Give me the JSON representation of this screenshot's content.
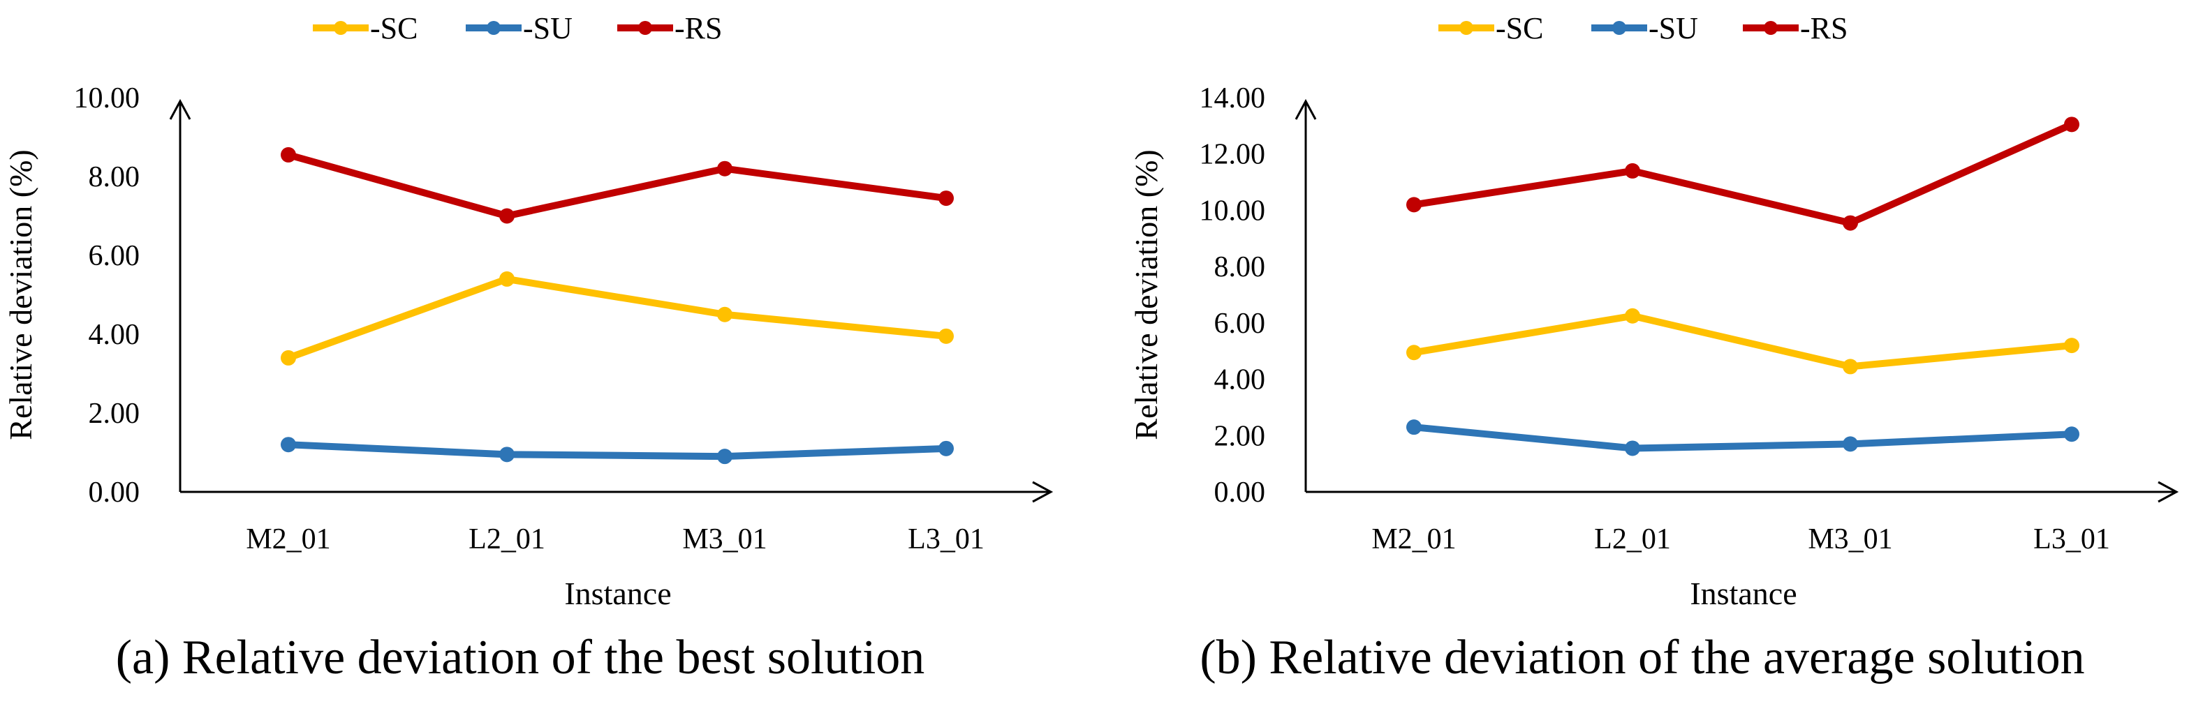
{
  "colors": {
    "SC": "#FFC000",
    "SU": "#2E75B6",
    "RS": "#C00000",
    "axis": "#000000"
  },
  "chart_data": [
    {
      "type": "line",
      "caption": "(a) Relative deviation of the best solution",
      "xlabel": "Instance",
      "ylabel": "Relative deviation (%)",
      "categories": [
        "M2_01",
        "L2_01",
        "M3_01",
        "L3_01"
      ],
      "ylim": [
        0,
        10
      ],
      "yticks": [
        "0.00",
        "2.00",
        "4.00",
        "6.00",
        "8.00",
        "10.00"
      ],
      "legend_position": "top-left",
      "series": [
        {
          "name": "-SC",
          "key": "SC",
          "values": [
            3.4,
            5.4,
            4.5,
            3.95
          ]
        },
        {
          "name": "-SU",
          "key": "SU",
          "values": [
            1.2,
            0.95,
            0.9,
            1.1
          ]
        },
        {
          "name": "-RS",
          "key": "RS",
          "values": [
            8.55,
            7.0,
            8.2,
            7.45
          ]
        }
      ]
    },
    {
      "type": "line",
      "caption": "(b) Relative deviation of the average solution",
      "xlabel": "Instance",
      "ylabel": "Relative deviation (%)",
      "categories": [
        "M2_01",
        "L2_01",
        "M3_01",
        "L3_01"
      ],
      "ylim": [
        0,
        14
      ],
      "yticks": [
        "0.00",
        "2.00",
        "4.00",
        "6.00",
        "8.00",
        "10.00",
        "12.00",
        "14.00"
      ],
      "legend_position": "top-left",
      "series": [
        {
          "name": "-SC",
          "key": "SC",
          "values": [
            4.95,
            6.25,
            4.45,
            5.2
          ]
        },
        {
          "name": "-SU",
          "key": "SU",
          "values": [
            2.3,
            1.55,
            1.7,
            2.05
          ]
        },
        {
          "name": "-RS",
          "key": "RS",
          "values": [
            10.2,
            11.4,
            9.55,
            13.05
          ]
        }
      ]
    }
  ]
}
